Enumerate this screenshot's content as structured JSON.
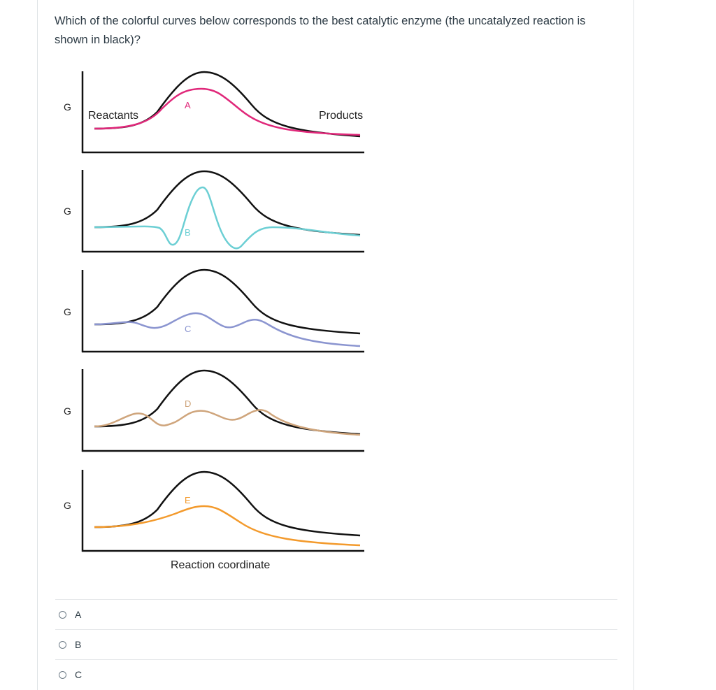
{
  "question": {
    "text": "Which of the colorful curves below corresponds to the best catalytic enzyme (the uncatalyzed reaction is shown in black)?"
  },
  "figure": {
    "axis_label": "G",
    "reactants_label": "Reactants",
    "products_label": "Products",
    "x_axis_label": "Reaction coordinate",
    "uncatalyzed_color": "#111111",
    "panels": [
      {
        "letter": "A",
        "color": "#e0287a"
      },
      {
        "letter": "B",
        "color": "#6ccfd4"
      },
      {
        "letter": "C",
        "color": "#8b95d0"
      },
      {
        "letter": "D",
        "color": "#cfa57c"
      },
      {
        "letter": "E",
        "color": "#f39a2c"
      }
    ]
  },
  "answers": {
    "options": [
      "A",
      "B",
      "C"
    ]
  }
}
